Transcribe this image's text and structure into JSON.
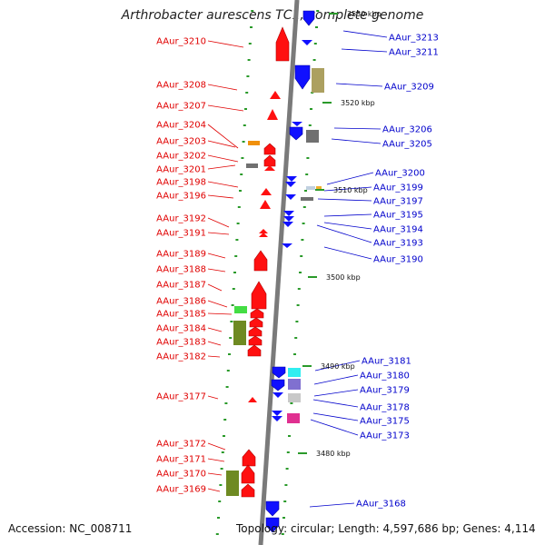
{
  "title": "Arthrobacter aurescens TC1, complete genome",
  "accession": "Accession: NC_008711",
  "summary": "Topology: circular; Length: 4,597,686 bp; Genes: 4,114",
  "colors": {
    "forward_gene": "#ff0000",
    "reverse_gene": "#0000ff",
    "left_label": "#e00000",
    "right_label": "#0000cc",
    "backbone": "#888888",
    "tick_marks": "#229922"
  },
  "scale_ticks": [
    "3530 kbp",
    "3520 kbp",
    "3510 kbp",
    "3500 kbp",
    "3490 kbp",
    "3480 kbp"
  ],
  "left_genes": [
    "AAur_3210",
    "AAur_3208",
    "AAur_3207",
    "AAur_3204",
    "AAur_3203",
    "AAur_3202",
    "AAur_3201",
    "AAur_3198",
    "AAur_3196",
    "AAur_3192",
    "AAur_3191",
    "AAur_3189",
    "AAur_3188",
    "AAur_3187",
    "AAur_3186",
    "AAur_3185",
    "AAur_3184",
    "AAur_3183",
    "AAur_3182",
    "AAur_3177",
    "AAur_3172",
    "AAur_3171",
    "AAur_3170",
    "AAur_3169"
  ],
  "right_genes": [
    "AAur_3213",
    "AAur_3211",
    "AAur_3209",
    "AAur_3206",
    "AAur_3205",
    "AAur_3200",
    "AAur_3199",
    "AAur_3197",
    "AAur_3195",
    "AAur_3194",
    "AAur_3193",
    "AAur_3190",
    "AAur_3181",
    "AAur_3180",
    "AAur_3179",
    "AAur_3178",
    "AAur_3175",
    "AAur_3173",
    "AAur_3168"
  ]
}
